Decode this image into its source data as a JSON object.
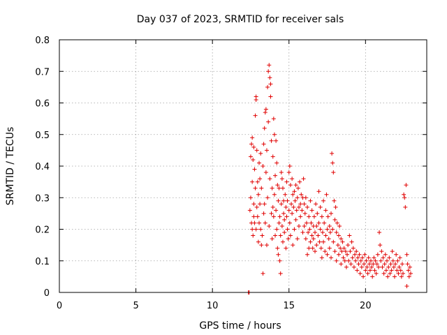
{
  "chart_data": {
    "type": "scatter",
    "title": "Day 037 of 2023, SRMTID for receiver sals",
    "xlabel": "GPS time / hours",
    "ylabel": "SRMTID / TECUs",
    "xlim": [
      0,
      24
    ],
    "ylim": [
      0,
      0.8
    ],
    "xticks": [
      0,
      5,
      10,
      15,
      20
    ],
    "xtick_labels": [
      "0",
      "5",
      "10",
      "15",
      "20"
    ],
    "yticks": [
      0,
      0.1,
      0.2,
      0.3,
      0.4,
      0.5,
      0.6,
      0.7,
      0.8
    ],
    "ytick_labels": [
      "0",
      "0.1",
      "0.2",
      "0.3",
      "0.4",
      "0.5",
      "0.6",
      "0.7",
      "0.8"
    ],
    "grid": true,
    "marker": "+",
    "marker_color": "#e00000",
    "series": [
      {
        "name": "SRMTID",
        "points": [
          [
            12.35,
            0.0
          ],
          [
            12.4,
            0.0
          ],
          [
            12.45,
            0.26
          ],
          [
            12.5,
            0.3
          ],
          [
            12.5,
            0.43
          ],
          [
            12.55,
            0.47
          ],
          [
            12.55,
            0.22
          ],
          [
            12.6,
            0.49
          ],
          [
            12.6,
            0.35
          ],
          [
            12.6,
            0.2
          ],
          [
            12.65,
            0.18
          ],
          [
            12.65,
            0.42
          ],
          [
            12.7,
            0.46
          ],
          [
            12.7,
            0.28
          ],
          [
            12.7,
            0.24
          ],
          [
            12.75,
            0.22
          ],
          [
            12.75,
            0.39
          ],
          [
            12.8,
            0.33
          ],
          [
            12.8,
            0.56
          ],
          [
            12.85,
            0.62
          ],
          [
            12.85,
            0.61
          ],
          [
            12.85,
            0.2
          ],
          [
            12.9,
            0.45
          ],
          [
            12.9,
            0.27
          ],
          [
            12.95,
            0.35
          ],
          [
            12.95,
            0.24
          ],
          [
            13.0,
            0.16
          ],
          [
            13.0,
            0.31
          ],
          [
            13.05,
            0.41
          ],
          [
            13.05,
            0.22
          ],
          [
            13.1,
            0.28
          ],
          [
            13.1,
            0.36
          ],
          [
            13.15,
            0.44
          ],
          [
            13.15,
            0.2
          ],
          [
            13.2,
            0.15
          ],
          [
            13.2,
            0.33
          ],
          [
            13.25,
            0.18
          ],
          [
            13.3,
            0.06
          ],
          [
            13.3,
            0.4
          ],
          [
            13.35,
            0.25
          ],
          [
            13.35,
            0.47
          ],
          [
            13.4,
            0.52
          ],
          [
            13.4,
            0.28
          ],
          [
            13.45,
            0.57
          ],
          [
            13.45,
            0.22
          ],
          [
            13.5,
            0.58
          ],
          [
            13.5,
            0.38
          ],
          [
            13.55,
            0.45
          ],
          [
            13.55,
            0.15
          ],
          [
            13.6,
            0.65
          ],
          [
            13.6,
            0.3
          ],
          [
            13.65,
            0.7
          ],
          [
            13.65,
            0.54
          ],
          [
            13.7,
            0.72
          ],
          [
            13.7,
            0.21
          ],
          [
            13.75,
            0.68
          ],
          [
            13.75,
            0.36
          ],
          [
            13.8,
            0.66
          ],
          [
            13.8,
            0.62
          ],
          [
            13.85,
            0.25
          ],
          [
            13.85,
            0.48
          ],
          [
            13.9,
            0.33
          ],
          [
            13.9,
            0.17
          ],
          [
            13.95,
            0.43
          ],
          [
            13.95,
            0.27
          ],
          [
            14.0,
            0.55
          ],
          [
            14.0,
            0.24
          ],
          [
            14.05,
            0.5
          ],
          [
            14.05,
            0.31
          ],
          [
            14.1,
            0.37
          ],
          [
            14.1,
            0.18
          ],
          [
            14.15,
            0.48
          ],
          [
            14.15,
            0.26
          ],
          [
            14.2,
            0.41
          ],
          [
            14.2,
            0.2
          ],
          [
            14.25,
            0.34
          ],
          [
            14.25,
            0.14
          ],
          [
            14.3,
            0.29
          ],
          [
            14.3,
            0.12
          ],
          [
            14.35,
            0.22
          ],
          [
            14.35,
            0.33
          ],
          [
            14.4,
            0.24
          ],
          [
            14.4,
            0.1
          ],
          [
            14.45,
            0.18
          ],
          [
            14.45,
            0.06
          ],
          [
            14.5,
            0.38
          ],
          [
            14.5,
            0.28
          ],
          [
            14.55,
            0.36
          ],
          [
            14.55,
            0.21
          ],
          [
            14.6,
            0.33
          ],
          [
            14.6,
            0.16
          ],
          [
            14.65,
            0.29
          ],
          [
            14.65,
            0.25
          ],
          [
            14.7,
            0.23
          ],
          [
            14.7,
            0.19
          ],
          [
            14.75,
            0.31
          ],
          [
            14.8,
            0.27
          ],
          [
            14.8,
            0.14
          ],
          [
            14.85,
            0.24
          ],
          [
            14.85,
            0.35
          ],
          [
            14.9,
            0.2
          ],
          [
            14.9,
            0.29
          ],
          [
            14.95,
            0.17
          ],
          [
            15.0,
            0.38
          ],
          [
            15.0,
            0.26
          ],
          [
            15.05,
            0.4
          ],
          [
            15.05,
            0.22
          ],
          [
            15.1,
            0.34
          ],
          [
            15.1,
            0.18
          ],
          [
            15.15,
            0.28
          ],
          [
            15.2,
            0.36
          ],
          [
            15.2,
            0.25
          ],
          [
            15.25,
            0.31
          ],
          [
            15.25,
            0.15
          ],
          [
            15.3,
            0.27
          ],
          [
            15.35,
            0.32
          ],
          [
            15.35,
            0.2
          ],
          [
            15.4,
            0.29
          ],
          [
            15.45,
            0.34
          ],
          [
            15.45,
            0.23
          ],
          [
            15.5,
            0.26
          ],
          [
            15.55,
            0.3
          ],
          [
            15.55,
            0.17
          ],
          [
            15.6,
            0.33
          ],
          [
            15.65,
            0.27
          ],
          [
            15.65,
            0.21
          ],
          [
            15.7,
            0.35
          ],
          [
            15.75,
            0.28
          ],
          [
            15.75,
            0.24
          ],
          [
            15.8,
            0.31
          ],
          [
            15.85,
            0.26
          ],
          [
            15.9,
            0.3
          ],
          [
            15.9,
            0.19
          ],
          [
            15.95,
            0.36
          ],
          [
            16.0,
            0.28
          ],
          [
            16.0,
            0.21
          ],
          [
            16.05,
            0.25
          ],
          [
            16.1,
            0.3
          ],
          [
            16.1,
            0.17
          ],
          [
            16.15,
            0.22
          ],
          [
            16.2,
            0.27
          ],
          [
            16.2,
            0.12
          ],
          [
            16.25,
            0.19
          ],
          [
            16.3,
            0.24
          ],
          [
            16.3,
            0.14
          ],
          [
            16.35,
            0.2
          ],
          [
            16.4,
            0.29
          ],
          [
            16.4,
            0.16
          ],
          [
            16.45,
            0.22
          ],
          [
            16.5,
            0.18
          ],
          [
            16.5,
            0.26
          ],
          [
            16.55,
            0.14
          ],
          [
            16.6,
            0.21
          ],
          [
            16.6,
            0.17
          ],
          [
            16.65,
            0.24
          ],
          [
            16.7,
            0.19
          ],
          [
            16.7,
            0.13
          ],
          [
            16.75,
            0.28
          ],
          [
            16.8,
            0.21
          ],
          [
            16.8,
            0.15
          ],
          [
            16.85,
            0.25
          ],
          [
            16.9,
            0.18
          ],
          [
            16.95,
            0.32
          ],
          [
            16.95,
            0.22
          ],
          [
            17.0,
            0.16
          ],
          [
            17.05,
            0.27
          ],
          [
            17.05,
            0.2
          ],
          [
            17.1,
            0.14
          ],
          [
            17.15,
            0.24
          ],
          [
            17.15,
            0.11
          ],
          [
            17.2,
            0.19
          ],
          [
            17.25,
            0.29
          ],
          [
            17.25,
            0.16
          ],
          [
            17.3,
            0.22
          ],
          [
            17.35,
            0.13
          ],
          [
            17.4,
            0.26
          ],
          [
            17.4,
            0.18
          ],
          [
            17.45,
            0.31
          ],
          [
            17.5,
            0.2
          ],
          [
            17.5,
            0.12
          ],
          [
            17.55,
            0.24
          ],
          [
            17.6,
            0.17
          ],
          [
            17.65,
            0.21
          ],
          [
            17.65,
            0.14
          ],
          [
            17.7,
            0.19
          ],
          [
            17.75,
            0.25
          ],
          [
            17.75,
            0.11
          ],
          [
            17.8,
            0.44
          ],
          [
            17.85,
            0.41
          ],
          [
            17.85,
            0.2
          ],
          [
            17.9,
            0.38
          ],
          [
            17.9,
            0.16
          ],
          [
            17.95,
            0.29
          ],
          [
            18.0,
            0.23
          ],
          [
            18.0,
            0.13
          ],
          [
            18.05,
            0.27
          ],
          [
            18.1,
            0.19
          ],
          [
            18.1,
            0.1
          ],
          [
            18.15,
            0.22
          ],
          [
            18.2,
            0.15
          ],
          [
            18.25,
            0.18
          ],
          [
            18.25,
            0.12
          ],
          [
            18.3,
            0.21
          ],
          [
            18.35,
            0.14
          ],
          [
            18.4,
            0.17
          ],
          [
            18.4,
            0.09
          ],
          [
            18.45,
            0.13
          ],
          [
            18.5,
            0.16
          ],
          [
            18.55,
            0.11
          ],
          [
            18.6,
            0.14
          ],
          [
            18.65,
            0.1
          ],
          [
            18.7,
            0.13
          ],
          [
            18.75,
            0.08
          ],
          [
            18.8,
            0.12
          ],
          [
            18.85,
            0.15
          ],
          [
            18.9,
            0.1
          ],
          [
            18.95,
            0.18
          ],
          [
            19.0,
            0.13
          ],
          [
            19.05,
            0.09
          ],
          [
            19.1,
            0.16
          ],
          [
            19.15,
            0.11
          ],
          [
            19.2,
            0.14
          ],
          [
            19.25,
            0.08
          ],
          [
            19.3,
            0.12
          ],
          [
            19.35,
            0.1
          ],
          [
            19.4,
            0.13
          ],
          [
            19.45,
            0.07
          ],
          [
            19.5,
            0.11
          ],
          [
            19.55,
            0.09
          ],
          [
            19.6,
            0.12
          ],
          [
            19.65,
            0.06
          ],
          [
            19.7,
            0.1
          ],
          [
            19.75,
            0.08
          ],
          [
            19.8,
            0.11
          ],
          [
            19.85,
            0.05
          ],
          [
            19.9,
            0.09
          ],
          [
            19.95,
            0.12
          ],
          [
            20.0,
            0.07
          ],
          [
            20.05,
            0.1
          ],
          [
            20.1,
            0.08
          ],
          [
            20.15,
            0.06
          ],
          [
            20.2,
            0.11
          ],
          [
            20.25,
            0.09
          ],
          [
            20.3,
            0.07
          ],
          [
            20.35,
            0.1
          ],
          [
            20.4,
            0.08
          ],
          [
            20.45,
            0.05
          ],
          [
            20.5,
            0.09
          ],
          [
            20.55,
            0.11
          ],
          [
            20.6,
            0.07
          ],
          [
            20.65,
            0.1
          ],
          [
            20.7,
            0.06
          ],
          [
            20.75,
            0.09
          ],
          [
            20.8,
            0.12
          ],
          [
            20.85,
            0.08
          ],
          [
            20.9,
            0.19
          ],
          [
            20.95,
            0.15
          ],
          [
            21.0,
            0.1
          ],
          [
            21.05,
            0.13
          ],
          [
            21.1,
            0.08
          ],
          [
            21.15,
            0.11
          ],
          [
            21.2,
            0.06
          ],
          [
            21.25,
            0.09
          ],
          [
            21.3,
            0.12
          ],
          [
            21.35,
            0.07
          ],
          [
            21.4,
            0.1
          ],
          [
            21.45,
            0.05
          ],
          [
            21.5,
            0.08
          ],
          [
            21.55,
            0.11
          ],
          [
            21.6,
            0.06
          ],
          [
            21.65,
            0.09
          ],
          [
            21.7,
            0.07
          ],
          [
            21.75,
            0.13
          ],
          [
            21.8,
            0.1
          ],
          [
            21.85,
            0.08
          ],
          [
            21.9,
            0.05
          ],
          [
            21.95,
            0.09
          ],
          [
            22.0,
            0.12
          ],
          [
            22.05,
            0.07
          ],
          [
            22.1,
            0.1
          ],
          [
            22.15,
            0.06
          ],
          [
            22.2,
            0.08
          ],
          [
            22.25,
            0.11
          ],
          [
            22.3,
            0.07
          ],
          [
            22.35,
            0.05
          ],
          [
            22.4,
            0.09
          ],
          [
            22.45,
            0.06
          ],
          [
            22.5,
            0.31
          ],
          [
            22.55,
            0.3
          ],
          [
            22.6,
            0.27
          ],
          [
            22.65,
            0.34
          ],
          [
            22.7,
            0.12
          ],
          [
            22.75,
            0.09
          ],
          [
            22.8,
            0.07
          ],
          [
            22.85,
            0.05
          ],
          [
            22.9,
            0.08
          ],
          [
            22.95,
            0.06
          ],
          [
            22.7,
            0.02
          ]
        ]
      }
    ]
  }
}
